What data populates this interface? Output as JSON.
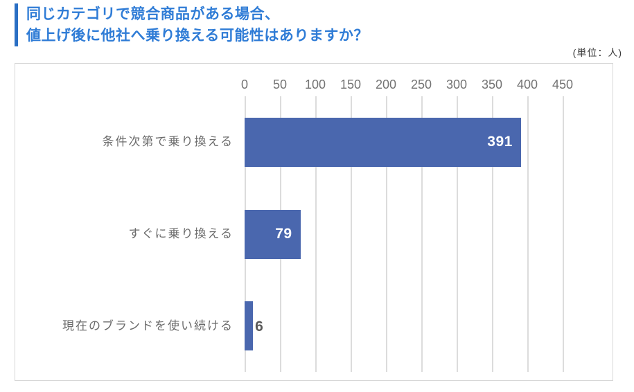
{
  "header": {
    "title_line1": "同じカテゴリで競合商品がある場合、",
    "title_line2": "値上げ後に他社へ乗り換える可能性はありますか？",
    "unit_label": "(単位：人)"
  },
  "colors": {
    "title_text": "#2f7cd6",
    "title_accent": "#2a6fc4",
    "bar_fill": "#4a67ae",
    "gridline": "#dcdcdc",
    "plot_border": "#d6d6d6",
    "axis_tick_text": "#737373",
    "category_text": "#6b6b6b",
    "value_inside": "#ffffff",
    "value_outside": "#595959"
  },
  "chart_data": {
    "type": "bar",
    "orientation": "horizontal",
    "title": "同じカテゴリで競合商品がある場合、値上げ後に他社へ乗り換える可能性はありますか？",
    "unit": "(単位：人)",
    "categories": [
      "条件次第で乗り換える",
      "すぐに乗り換える",
      "現在のブランドを使い続ける"
    ],
    "values": [
      391,
      79,
      6
    ],
    "x_ticks": [
      0,
      50,
      100,
      150,
      200,
      250,
      300,
      350,
      400,
      450
    ],
    "xlim": [
      0,
      470
    ],
    "axis_position": "top",
    "grid": true,
    "legend": false,
    "value_labels": true
  }
}
